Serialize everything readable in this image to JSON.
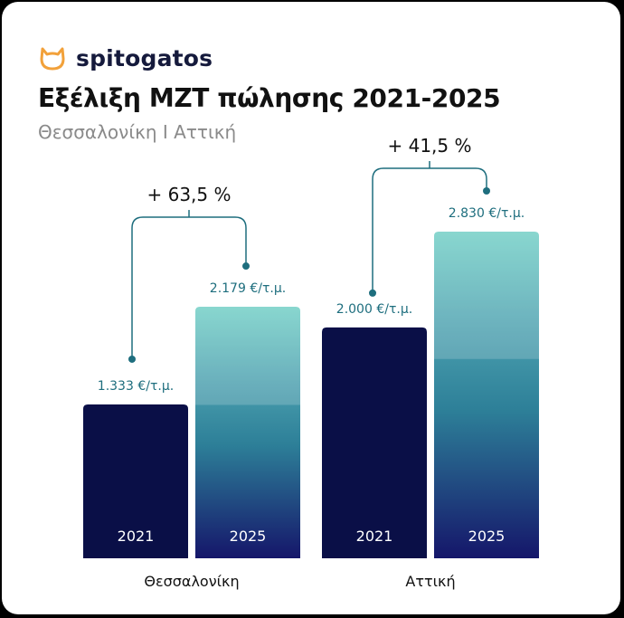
{
  "brand": {
    "name": "spitogatos",
    "logo_icon": "cat-head-icon",
    "logo_color": "#F2A13A"
  },
  "header": {
    "title": "Εξέλιξη ΜΖΤ πώλησης 2021-2025",
    "subtitle": "Θεσσαλονίκη Ι Αττική"
  },
  "chart_data": {
    "type": "bar",
    "title": "Εξέλιξη ΜΖΤ πώλησης 2021-2025",
    "subtitle": "Θεσσαλονίκη Ι Αττική",
    "unit": "€/τ.μ.",
    "ylim": [
      0,
      3400
    ],
    "grid": false,
    "legend": "none",
    "groups": [
      {
        "name": "Θεσσαλονίκη",
        "change_label": "+ 63,5 %",
        "bars": [
          {
            "year": "2021",
            "value": 1333,
            "label": "1.333 €/τ.μ."
          },
          {
            "year": "2025",
            "value": 2179,
            "label": "2.179 €/τ.μ."
          }
        ]
      },
      {
        "name": "Αττική",
        "change_label": "+ 41,5 %",
        "bars": [
          {
            "year": "2021",
            "value": 2000,
            "label": "2.000 €/τ.μ."
          },
          {
            "year": "2025",
            "value": 2830,
            "label": "2.830 €/τ.μ."
          }
        ]
      }
    ],
    "colors": {
      "bar_2021": "#0a0f47",
      "bar_2025_top": "#6fcec5",
      "bar_2025_mid": "#2d7f98",
      "bar_2025_bottom": "#15166a",
      "connector": "#1e6e7e"
    }
  }
}
